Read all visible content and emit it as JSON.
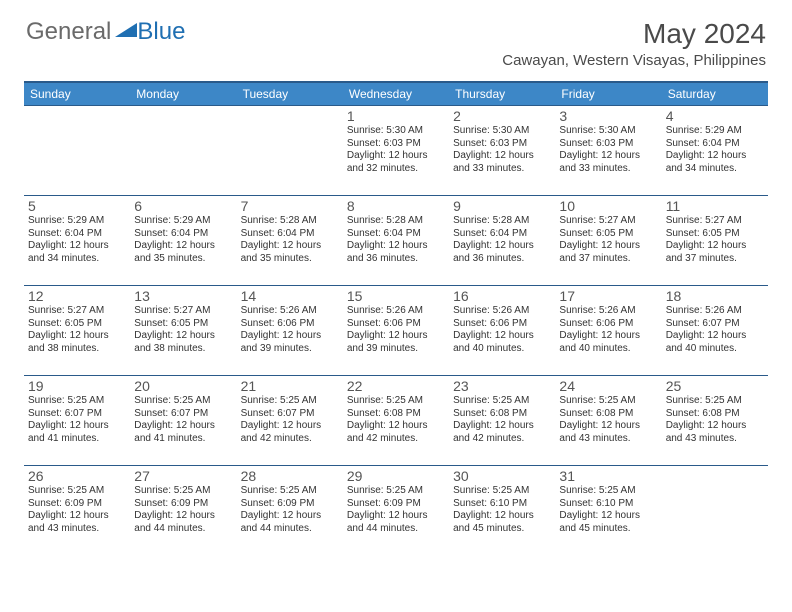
{
  "logo": {
    "text1": "General",
    "text2": "Blue"
  },
  "title": "May 2024",
  "location": "Cawayan, Western Visayas, Philippines",
  "colors": {
    "header_bg": "#3d87c7",
    "header_border": "#2a5a8a",
    "logo_gray": "#6a6a6a",
    "logo_blue": "#1f6fb2",
    "text": "#333333"
  },
  "day_headers": [
    "Sunday",
    "Monday",
    "Tuesday",
    "Wednesday",
    "Thursday",
    "Friday",
    "Saturday"
  ],
  "weeks": [
    [
      null,
      null,
      null,
      {
        "n": "1",
        "sr": "5:30 AM",
        "ss": "6:03 PM",
        "dl": "12 hours and 32 minutes."
      },
      {
        "n": "2",
        "sr": "5:30 AM",
        "ss": "6:03 PM",
        "dl": "12 hours and 33 minutes."
      },
      {
        "n": "3",
        "sr": "5:30 AM",
        "ss": "6:03 PM",
        "dl": "12 hours and 33 minutes."
      },
      {
        "n": "4",
        "sr": "5:29 AM",
        "ss": "6:04 PM",
        "dl": "12 hours and 34 minutes."
      }
    ],
    [
      {
        "n": "5",
        "sr": "5:29 AM",
        "ss": "6:04 PM",
        "dl": "12 hours and 34 minutes."
      },
      {
        "n": "6",
        "sr": "5:29 AM",
        "ss": "6:04 PM",
        "dl": "12 hours and 35 minutes."
      },
      {
        "n": "7",
        "sr": "5:28 AM",
        "ss": "6:04 PM",
        "dl": "12 hours and 35 minutes."
      },
      {
        "n": "8",
        "sr": "5:28 AM",
        "ss": "6:04 PM",
        "dl": "12 hours and 36 minutes."
      },
      {
        "n": "9",
        "sr": "5:28 AM",
        "ss": "6:04 PM",
        "dl": "12 hours and 36 minutes."
      },
      {
        "n": "10",
        "sr": "5:27 AM",
        "ss": "6:05 PM",
        "dl": "12 hours and 37 minutes."
      },
      {
        "n": "11",
        "sr": "5:27 AM",
        "ss": "6:05 PM",
        "dl": "12 hours and 37 minutes."
      }
    ],
    [
      {
        "n": "12",
        "sr": "5:27 AM",
        "ss": "6:05 PM",
        "dl": "12 hours and 38 minutes."
      },
      {
        "n": "13",
        "sr": "5:27 AM",
        "ss": "6:05 PM",
        "dl": "12 hours and 38 minutes."
      },
      {
        "n": "14",
        "sr": "5:26 AM",
        "ss": "6:06 PM",
        "dl": "12 hours and 39 minutes."
      },
      {
        "n": "15",
        "sr": "5:26 AM",
        "ss": "6:06 PM",
        "dl": "12 hours and 39 minutes."
      },
      {
        "n": "16",
        "sr": "5:26 AM",
        "ss": "6:06 PM",
        "dl": "12 hours and 40 minutes."
      },
      {
        "n": "17",
        "sr": "5:26 AM",
        "ss": "6:06 PM",
        "dl": "12 hours and 40 minutes."
      },
      {
        "n": "18",
        "sr": "5:26 AM",
        "ss": "6:07 PM",
        "dl": "12 hours and 40 minutes."
      }
    ],
    [
      {
        "n": "19",
        "sr": "5:25 AM",
        "ss": "6:07 PM",
        "dl": "12 hours and 41 minutes."
      },
      {
        "n": "20",
        "sr": "5:25 AM",
        "ss": "6:07 PM",
        "dl": "12 hours and 41 minutes."
      },
      {
        "n": "21",
        "sr": "5:25 AM",
        "ss": "6:07 PM",
        "dl": "12 hours and 42 minutes."
      },
      {
        "n": "22",
        "sr": "5:25 AM",
        "ss": "6:08 PM",
        "dl": "12 hours and 42 minutes."
      },
      {
        "n": "23",
        "sr": "5:25 AM",
        "ss": "6:08 PM",
        "dl": "12 hours and 42 minutes."
      },
      {
        "n": "24",
        "sr": "5:25 AM",
        "ss": "6:08 PM",
        "dl": "12 hours and 43 minutes."
      },
      {
        "n": "25",
        "sr": "5:25 AM",
        "ss": "6:08 PM",
        "dl": "12 hours and 43 minutes."
      }
    ],
    [
      {
        "n": "26",
        "sr": "5:25 AM",
        "ss": "6:09 PM",
        "dl": "12 hours and 43 minutes."
      },
      {
        "n": "27",
        "sr": "5:25 AM",
        "ss": "6:09 PM",
        "dl": "12 hours and 44 minutes."
      },
      {
        "n": "28",
        "sr": "5:25 AM",
        "ss": "6:09 PM",
        "dl": "12 hours and 44 minutes."
      },
      {
        "n": "29",
        "sr": "5:25 AM",
        "ss": "6:09 PM",
        "dl": "12 hours and 44 minutes."
      },
      {
        "n": "30",
        "sr": "5:25 AM",
        "ss": "6:10 PM",
        "dl": "12 hours and 45 minutes."
      },
      {
        "n": "31",
        "sr": "5:25 AM",
        "ss": "6:10 PM",
        "dl": "12 hours and 45 minutes."
      },
      null
    ]
  ],
  "labels": {
    "sunrise": "Sunrise:",
    "sunset": "Sunset:",
    "daylight": "Daylight:"
  }
}
